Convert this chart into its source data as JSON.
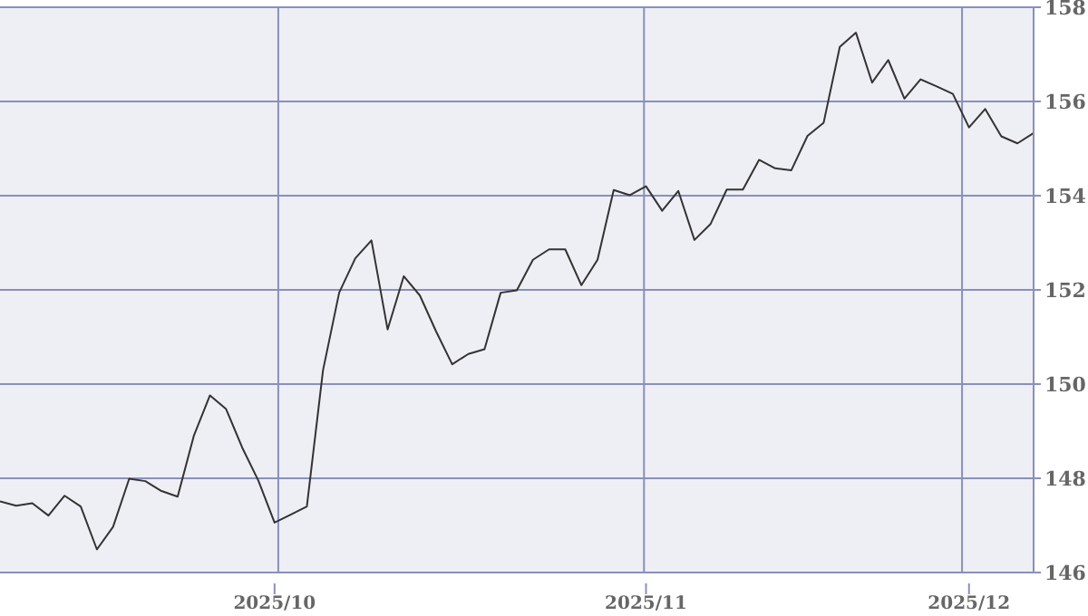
{
  "chart_data": {
    "type": "line",
    "categories": [
      null,
      null,
      null,
      null,
      null,
      null,
      null,
      null,
      null,
      null,
      null,
      null,
      null,
      null,
      null,
      null,
      null,
      "2025/10",
      null,
      null,
      null,
      null,
      null,
      null,
      null,
      null,
      null,
      null,
      null,
      null,
      null,
      null,
      null,
      null,
      null,
      null,
      null,
      null,
      null,
      null,
      "2025/11",
      null,
      null,
      null,
      null,
      null,
      null,
      null,
      null,
      null,
      null,
      null,
      null,
      null,
      null,
      null,
      null,
      null,
      null,
      null,
      "2025/12",
      null,
      null,
      null,
      null
    ],
    "values": [
      147.51,
      147.42,
      147.47,
      147.21,
      147.63,
      147.4,
      146.49,
      146.97,
      147.99,
      147.94,
      147.73,
      147.61,
      148.9,
      149.76,
      149.47,
      148.65,
      147.95,
      147.06,
      147.23,
      147.4,
      150.29,
      151.94,
      152.67,
      153.05,
      151.16,
      152.29,
      151.88,
      151.12,
      150.42,
      150.64,
      150.74,
      151.94,
      151.99,
      152.64,
      152.86,
      152.86,
      152.1,
      152.64,
      154.12,
      154.01,
      154.2,
      153.68,
      154.1,
      153.06,
      153.4,
      154.13,
      154.13,
      154.76,
      154.58,
      154.54,
      155.27,
      155.55,
      157.16,
      157.46,
      156.4,
      156.88,
      156.06,
      156.47,
      156.32,
      156.16,
      155.45,
      155.84,
      155.26,
      155.11,
      155.33
    ],
    "color": "#333333",
    "ylim": [
      146,
      158
    ],
    "yticks": [
      146,
      148,
      150,
      152,
      154,
      156,
      158
    ],
    "grid": true,
    "marker": "none",
    "line_style": "solid"
  }
}
